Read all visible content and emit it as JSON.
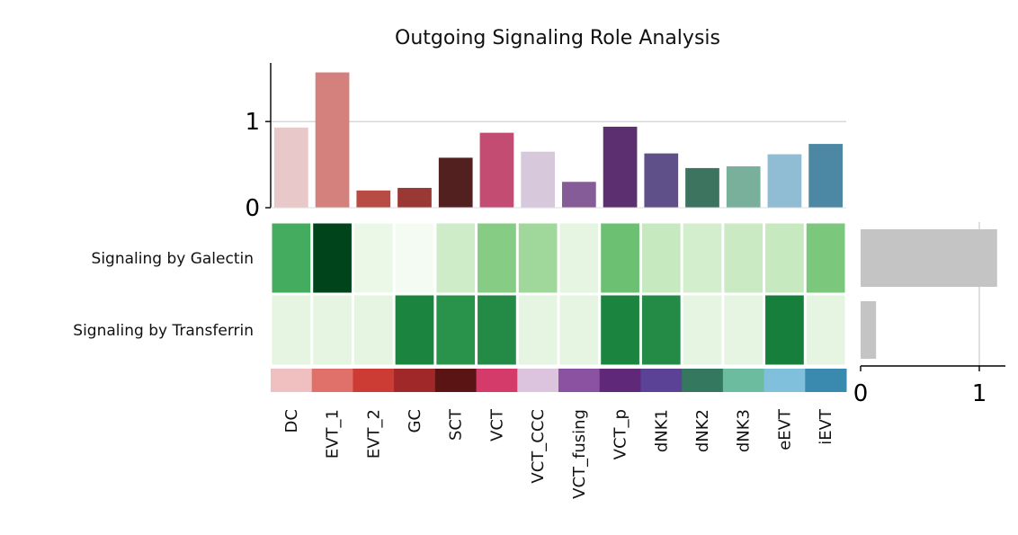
{
  "chart_data": {
    "type": "heatmap",
    "title": "Outgoing Signaling Role Analysis",
    "categories": [
      "DC",
      "EVT_1",
      "EVT_2",
      "GC",
      "SCT",
      "VCT",
      "VCT_CCC",
      "VCT_fusing",
      "VCT_p",
      "dNK1",
      "dNK2",
      "dNK3",
      "eEVT",
      "iEVT"
    ],
    "category_colors": [
      "#f0c0c0",
      "#e0706a",
      "#cc3c34",
      "#a02828",
      "#5a1414",
      "#d43a6a",
      "#dcc4de",
      "#8a52a0",
      "#602878",
      "#5c4296",
      "#347860",
      "#6cbca0",
      "#80c0dc",
      "#3a8ab0"
    ],
    "pathways": [
      "Signaling by Galectin",
      "Signaling by Transferrin"
    ],
    "heatmap": [
      [
        0.62,
        1.0,
        0.08,
        0.02,
        0.22,
        0.45,
        0.38,
        0.12,
        0.52,
        0.25,
        0.2,
        0.24,
        0.25,
        0.48
      ],
      [
        0.12,
        0.12,
        0.12,
        0.78,
        0.72,
        0.75,
        0.12,
        0.12,
        0.78,
        0.75,
        0.12,
        0.12,
        0.8,
        0.12
      ]
    ],
    "top_bar": {
      "values": [
        0.93,
        1.57,
        0.2,
        0.23,
        0.58,
        0.87,
        0.65,
        0.3,
        0.94,
        0.63,
        0.46,
        0.48,
        0.62,
        0.74
      ],
      "colors": [
        "#e8c8c8",
        "#d4807c",
        "#b84c44",
        "#9a3834",
        "#532020",
        "#c24c72",
        "#d8c8dc",
        "#865c98",
        "#5c3070",
        "#60508a",
        "#3c7460",
        "#78b09c",
        "#90bcd4",
        "#4c88a4"
      ],
      "ylim": [
        0,
        1.68
      ],
      "yticks": [
        "0",
        "1"
      ],
      "ytick_values": [
        0,
        1
      ],
      "gridline_at": 1
    },
    "side_bar": {
      "values": [
        1.15,
        0.13
      ],
      "color": "#c4c4c4",
      "xlim": [
        0,
        1.22
      ],
      "xticks": [
        "0",
        "1"
      ],
      "xtick_values": [
        0,
        1
      ],
      "gridline_at": 1
    }
  }
}
